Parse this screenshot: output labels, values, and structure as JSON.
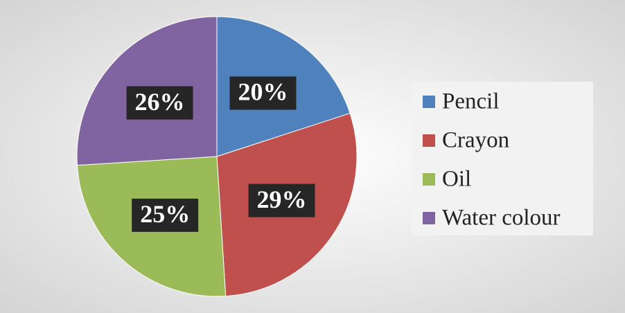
{
  "chart_data": {
    "type": "pie",
    "categories": [
      "Pencil",
      "Crayon",
      "Oil",
      "Water colour"
    ],
    "values": [
      20,
      29,
      25,
      26
    ],
    "value_labels": [
      "20%",
      "29%",
      "25%",
      "26%"
    ],
    "colors": [
      "#4f81bd",
      "#c0504d",
      "#9bbb59",
      "#8064a2"
    ],
    "legend": "right"
  }
}
